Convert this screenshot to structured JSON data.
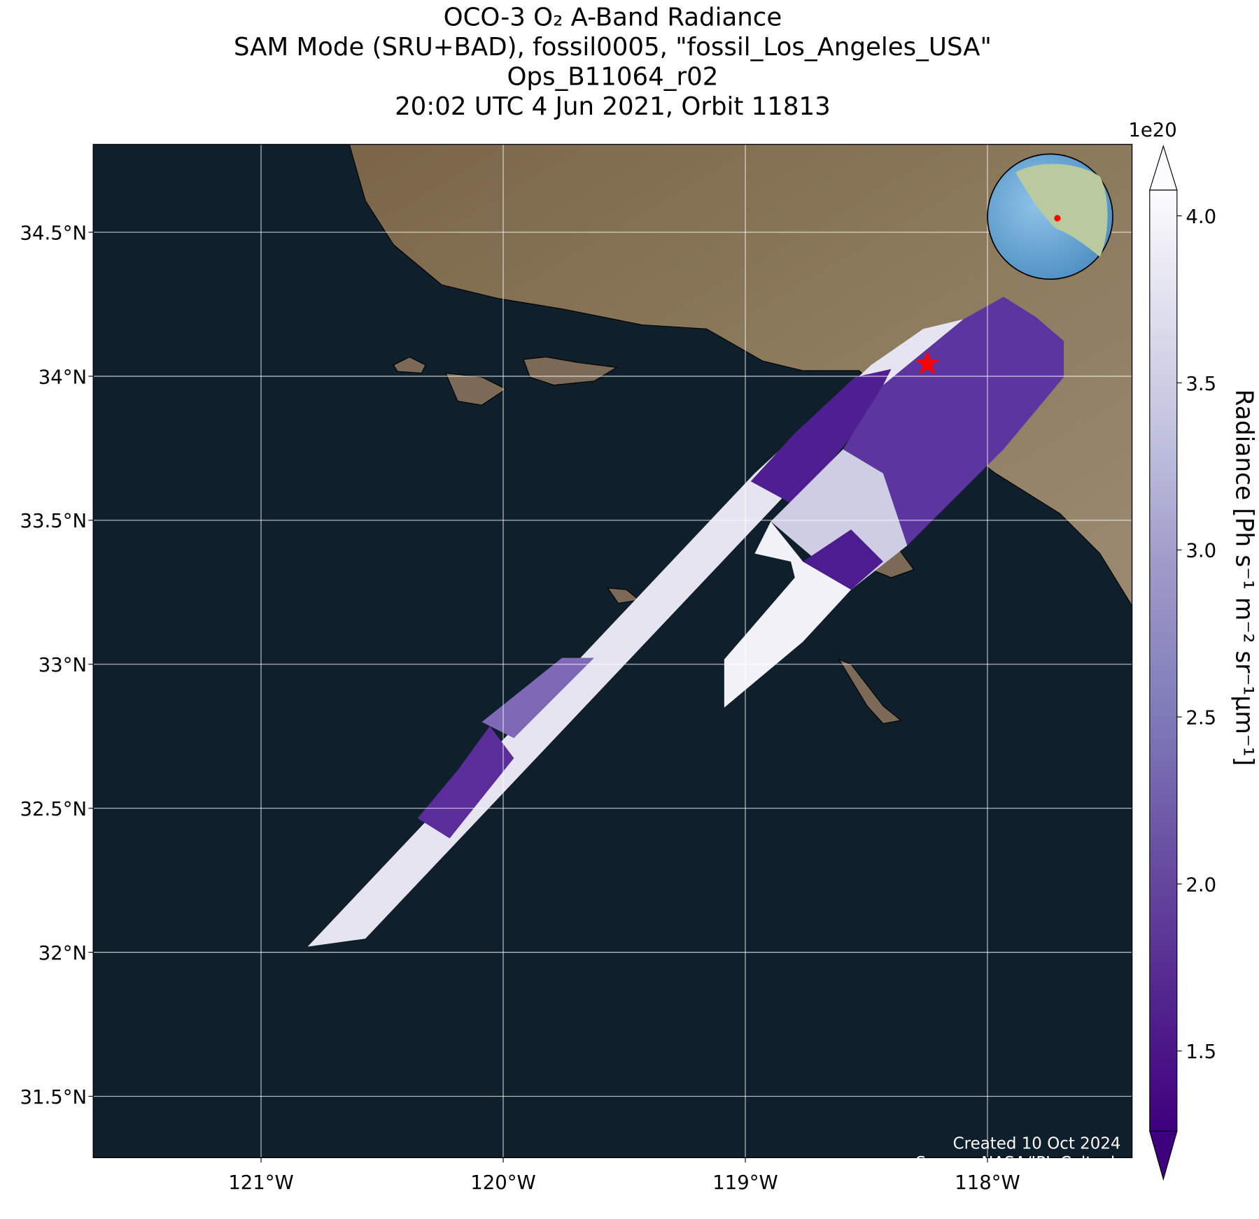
{
  "chart_data": {
    "type": "map",
    "title": [
      "OCO-3 O₂ A-Band Radiance",
      "SAM Mode (SRU+BAD), fossil0005, \"fossil_Los_Angeles_USA\"",
      "Ops_B11064_r02",
      "20:02 UTC 4 Jun 2021, Orbit 11813"
    ],
    "xlim": [
      -121.693,
      -117.403
    ],
    "ylim": [
      31.287,
      34.805
    ],
    "xticks": [
      {
        "value": -121,
        "label": "121°W"
      },
      {
        "value": -120,
        "label": "120°W"
      },
      {
        "value": -119,
        "label": "119°W"
      },
      {
        "value": -118,
        "label": "118°W"
      }
    ],
    "yticks": [
      {
        "value": 31.5,
        "label": "31.5°N"
      },
      {
        "value": 32,
        "label": "32°N"
      },
      {
        "value": 32.5,
        "label": "32.5°N"
      },
      {
        "value": 33,
        "label": "33°N"
      },
      {
        "value": 33.5,
        "label": "33.5°N"
      },
      {
        "value": 34,
        "label": "34°N"
      },
      {
        "value": 34.5,
        "label": "34.5°N"
      }
    ],
    "grid": true,
    "colorbar": {
      "label": "Radiance [Ph s⁻¹ m⁻² sr⁻¹μm⁻¹]",
      "offset_label": "1e20",
      "lim": [
        1.26,
        4.077
      ],
      "ticks": [
        {
          "value": 1.5,
          "label": "1.5"
        },
        {
          "value": 2,
          "label": "2.0"
        },
        {
          "value": 2.5,
          "label": "2.5"
        },
        {
          "value": 3,
          "label": "3.0"
        },
        {
          "value": 3.5,
          "label": "3.5"
        },
        {
          "value": 4,
          "label": "4.0"
        }
      ]
    },
    "annotations": [
      "Created 10 Oct 2024",
      "Source: NASA/JPL-Caltech"
    ]
  }
}
